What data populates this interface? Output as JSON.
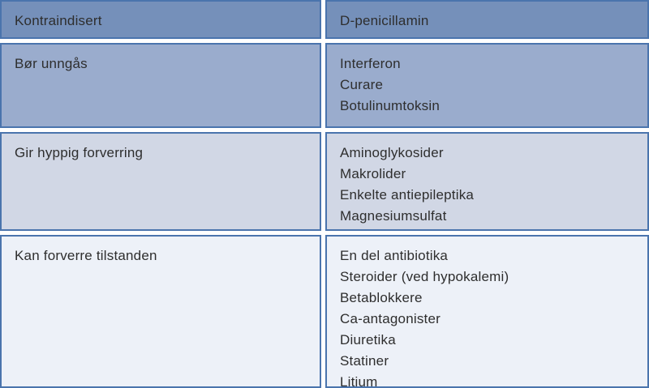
{
  "table": {
    "description": "Drug caution table (Norwegian)",
    "palette": {
      "border": "#4a74ad",
      "text": "#2e2e2e",
      "gap": "#ffffff"
    },
    "rows": [
      {
        "category": "Kontraindisert",
        "color": "#7590ba",
        "items": [
          "D-penicillamin"
        ]
      },
      {
        "category": "Bør unngås",
        "color": "#9aaccd",
        "items": [
          "Interferon",
          "Curare",
          "Botulinumtoksin"
        ]
      },
      {
        "category": "Gir hyppig forverring",
        "color": "#d1d7e5",
        "items": [
          "Aminoglykosider",
          "Makrolider",
          "Enkelte antiepileptika",
          "Magnesiumsulfat"
        ]
      },
      {
        "category": "Kan forverre tilstanden",
        "color": "#edf1f8",
        "items": [
          "En del antibiotika",
          "Steroider (ved hypokalemi)",
          "Betablokkere",
          "Ca-antagonister",
          "Diuretika",
          "Statiner",
          "Litium"
        ]
      }
    ]
  }
}
